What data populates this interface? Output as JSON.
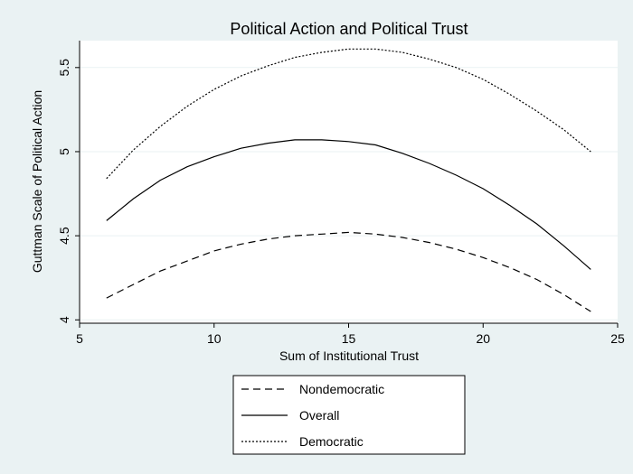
{
  "colors": {
    "outer_background": "#eaf2f3",
    "plot_background": "#ffffff",
    "grid": "#eaf2f3",
    "line": "#000000"
  },
  "chart_data": {
    "type": "line",
    "title": "Political Action and Political Trust",
    "xlabel": "Sum of Institutional Trust",
    "ylabel": "Guttman Scale of Political Action",
    "xlim": [
      5,
      25
    ],
    "ylim": [
      3.98,
      5.66
    ],
    "x_ticks": [
      "5",
      "10",
      "15",
      "20",
      "25"
    ],
    "y_ticks": [
      "4",
      "4.5",
      "5",
      "5.5"
    ],
    "grid": "horizontal",
    "legend_position": "bottom",
    "x": [
      6,
      7,
      8,
      9,
      10,
      11,
      12,
      13,
      14,
      15,
      16,
      17,
      18,
      19,
      20,
      21,
      22,
      23,
      24
    ],
    "series": [
      {
        "name": "Nondemocratic",
        "style": "dashed",
        "values": [
          4.13,
          4.21,
          4.29,
          4.35,
          4.41,
          4.45,
          4.48,
          4.5,
          4.51,
          4.52,
          4.51,
          4.49,
          4.46,
          4.42,
          4.37,
          4.31,
          4.24,
          4.15,
          4.05
        ]
      },
      {
        "name": "Overall",
        "style": "solid",
        "values": [
          4.59,
          4.72,
          4.83,
          4.91,
          4.97,
          5.02,
          5.05,
          5.07,
          5.07,
          5.06,
          5.04,
          4.99,
          4.93,
          4.86,
          4.78,
          4.68,
          4.57,
          4.44,
          4.3
        ]
      },
      {
        "name": "Democratic",
        "style": "dotted",
        "values": [
          4.84,
          5.01,
          5.15,
          5.27,
          5.37,
          5.45,
          5.51,
          5.56,
          5.59,
          5.61,
          5.61,
          5.59,
          5.55,
          5.5,
          5.43,
          5.34,
          5.24,
          5.13,
          5.0
        ]
      }
    ]
  }
}
